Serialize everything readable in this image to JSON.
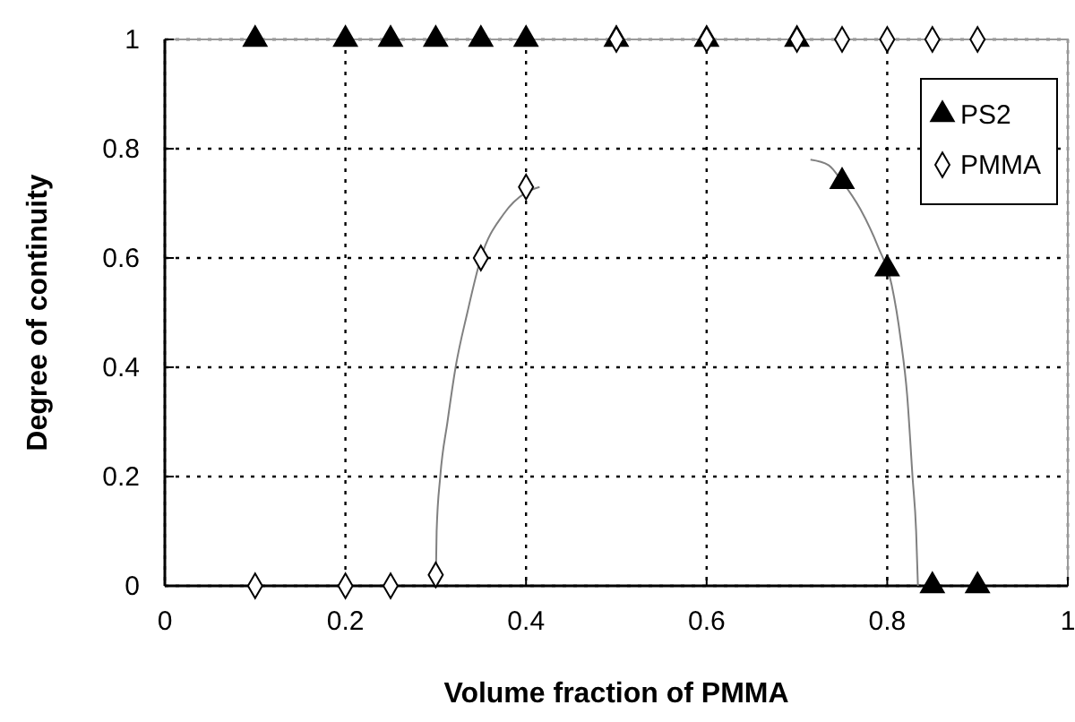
{
  "chart_data": {
    "type": "scatter",
    "xlabel": "Volume fraction of PMMA",
    "ylabel": "Degree of continuity",
    "xlim": [
      0,
      1
    ],
    "ylim": [
      0,
      1
    ],
    "xticks": [
      0,
      0.2,
      0.4,
      0.6,
      0.8,
      1
    ],
    "yticks": [
      0,
      0.2,
      0.4,
      0.6,
      0.8,
      1
    ],
    "grid": true,
    "legend": "top right",
    "series": [
      {
        "name": "PS2",
        "color": "#000000",
        "marker": "triangle",
        "x": [
          0.1,
          0.2,
          0.25,
          0.3,
          0.35,
          0.4,
          0.5,
          0.6,
          0.7,
          0.75,
          0.8,
          0.85,
          0.9
        ],
        "values": [
          1,
          1,
          1,
          1,
          1,
          1,
          1,
          1,
          1,
          0.74,
          0.58,
          0,
          0
        ]
      },
      {
        "name": "PMMA",
        "color": "#000000",
        "marker": "diamond",
        "x": [
          0.1,
          0.2,
          0.25,
          0.3,
          0.35,
          0.4,
          0.5,
          0.6,
          0.7,
          0.75,
          0.8,
          0.85,
          0.9
        ],
        "values": [
          0,
          0,
          0,
          0.02,
          0.6,
          0.73,
          1,
          1,
          1,
          1,
          1,
          1,
          1
        ]
      },
      {
        "type": "line",
        "color": "#808080",
        "marker": "none",
        "x": [
          0.3,
          0.301,
          0.305,
          0.313,
          0.322,
          0.335,
          0.35,
          0.375,
          0.4,
          0.415
        ],
        "values": [
          0,
          0.1,
          0.2,
          0.3,
          0.4,
          0.5,
          0.6,
          0.68,
          0.72,
          0.73
        ]
      },
      {
        "type": "line",
        "color": "#808080",
        "marker": "none",
        "x": [
          0.715,
          0.735,
          0.75,
          0.77,
          0.79,
          0.805,
          0.815,
          0.822,
          0.828,
          0.832,
          0.834
        ],
        "values": [
          0.78,
          0.77,
          0.74,
          0.69,
          0.62,
          0.55,
          0.45,
          0.35,
          0.2,
          0.1,
          0
        ]
      }
    ]
  }
}
